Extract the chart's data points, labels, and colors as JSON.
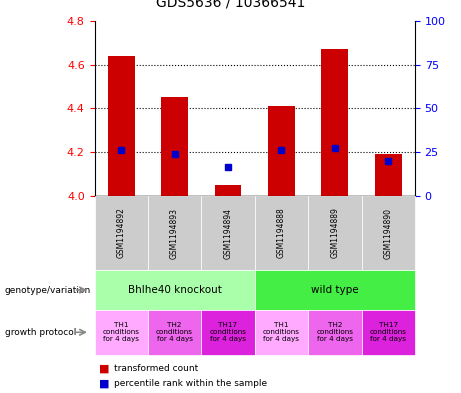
{
  "title": "GDS5636 / 10366541",
  "samples": [
    "GSM1194892",
    "GSM1194893",
    "GSM1194894",
    "GSM1194888",
    "GSM1194889",
    "GSM1194890"
  ],
  "red_bars": [
    4.64,
    4.45,
    4.05,
    4.41,
    4.67,
    4.19
  ],
  "blue_vals": [
    4.21,
    4.19,
    4.13,
    4.21,
    4.22,
    4.16
  ],
  "y_min": 4.0,
  "y_max": 4.8,
  "y_ticks": [
    4.0,
    4.2,
    4.4,
    4.6,
    4.8
  ],
  "y2_ticks": [
    0,
    25,
    50,
    75,
    100
  ],
  "genotype_groups": [
    {
      "label": "Bhlhe40 knockout",
      "start": 0,
      "end": 3,
      "color": "#aaffaa"
    },
    {
      "label": "wild type",
      "start": 3,
      "end": 6,
      "color": "#44ee44"
    }
  ],
  "prot_colors": [
    "#ffaaff",
    "#ee66ee",
    "#dd22dd",
    "#ffaaff",
    "#ee66ee",
    "#dd22dd"
  ],
  "prot_labels": [
    "TH1\nconditions\nfor 4 days",
    "TH2\nconditions\nfor 4 days",
    "TH17\nconditions\nfor 4 days",
    "TH1\nconditions\nfor 4 days",
    "TH2\nconditions\nfor 4 days",
    "TH17\nconditions\nfor 4 days"
  ],
  "bar_color": "#cc0000",
  "dot_color": "#0000cc",
  "sample_bg_color": "#cccccc",
  "legend": [
    "transformed count",
    "percentile rank within the sample"
  ],
  "left_labels": [
    "genotype/variation",
    "growth protocol"
  ]
}
